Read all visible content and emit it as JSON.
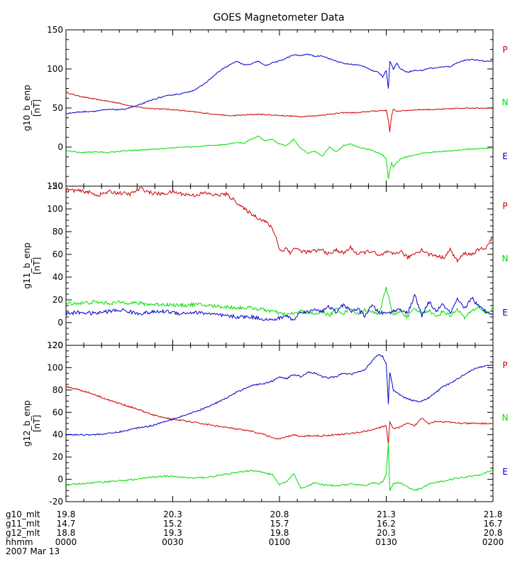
{
  "chart_data": {
    "type": "line",
    "title": "GOES Magnetometer Data",
    "date_label": "2007 Mar 13",
    "colors": {
      "P": "#cc0000",
      "N": "#00dd00",
      "E": "#0000cc",
      "axis": "#000000"
    },
    "x_axis": {
      "unit": "hhmm",
      "range_minutes": [
        0,
        120
      ],
      "tick_positions_minutes": [
        0,
        30,
        60,
        90,
        120
      ],
      "rows": [
        {
          "label": "g10_mlt",
          "values": [
            "19.8",
            "20.3",
            "20.8",
            "21.3",
            "21.8"
          ]
        },
        {
          "label": "g11_mlt",
          "values": [
            "14.7",
            "15.2",
            "15.7",
            "16.2",
            "16.7"
          ]
        },
        {
          "label": "g12_mlt",
          "values": [
            "18.8",
            "19.3",
            "19.8",
            "20.3",
            "20.8"
          ]
        },
        {
          "label": "hhmm",
          "values": [
            "0000",
            "0030",
            "0100",
            "0130",
            "0200"
          ]
        }
      ]
    },
    "panels": [
      {
        "ylabel": "g10_b_enp",
        "yunit": "[nT]",
        "ylim": [
          -50,
          150
        ],
        "yticks": [
          -50,
          0,
          50,
          100,
          150
        ],
        "series": [
          {
            "name": "P",
            "color": "#cc0000",
            "x": [
              0,
              3,
              6,
              10,
              14,
              18,
              22,
              26,
              30,
              34,
              38,
              42,
              46,
              50,
              54,
              58,
              62,
              66,
              70,
              74,
              78,
              82,
              86,
              90,
              90.6,
              91,
              91.5,
              92,
              93,
              96,
              100,
              104,
              108,
              112,
              116,
              120
            ],
            "y": [
              70,
              66,
              63,
              60,
              57,
              53,
              50,
              49,
              48,
              46,
              44,
              42,
              40,
              41,
              42,
              41,
              40,
              39,
              40,
              42,
              44,
              44,
              46,
              47,
              35,
              20,
              40,
              48,
              46,
              47,
              48,
              48,
              49,
              50,
              50,
              50
            ]
          },
          {
            "name": "N",
            "color": "#00dd00",
            "x": [
              0,
              4,
              8,
              12,
              16,
              20,
              24,
              28,
              32,
              36,
              40,
              44,
              48,
              50,
              52,
              54,
              56,
              58,
              60,
              62,
              64,
              66,
              68,
              70,
              72,
              74,
              76,
              78,
              80,
              82,
              84,
              86,
              88,
              89,
              90,
              90.6,
              91,
              91.5,
              92,
              93,
              94,
              96,
              98,
              100,
              104,
              108,
              112,
              116,
              120
            ],
            "y": [
              -5,
              -7,
              -6,
              -7,
              -5,
              -4,
              -3,
              -2,
              0,
              0,
              2,
              3,
              6,
              5,
              10,
              14,
              8,
              10,
              4,
              2,
              10,
              -2,
              -8,
              -5,
              -12,
              0,
              -6,
              2,
              4,
              0,
              -2,
              -4,
              -8,
              -10,
              -15,
              -40,
              -30,
              -20,
              -25,
              -20,
              -15,
              -12,
              -10,
              -8,
              -6,
              -5,
              -3,
              -2,
              -1
            ]
          },
          {
            "name": "E",
            "color": "#0000cc",
            "x": [
              0,
              4,
              8,
              12,
              16,
              20,
              24,
              26,
              28,
              30,
              32,
              34,
              36,
              38,
              40,
              42,
              44,
              46,
              48,
              50,
              52,
              54,
              56,
              58,
              60,
              62,
              64,
              66,
              68,
              70,
              72,
              74,
              76,
              78,
              80,
              82,
              84,
              86,
              88,
              89,
              90,
              90.6,
              91,
              92,
              93,
              94,
              96,
              98,
              100,
              102,
              104,
              106,
              108,
              110,
              112,
              114,
              116,
              118,
              120
            ],
            "y": [
              43,
              45,
              46,
              48,
              48,
              53,
              60,
              63,
              65,
              67,
              68,
              70,
              73,
              78,
              85,
              93,
              100,
              105,
              110,
              105,
              106,
              110,
              104,
              108,
              110,
              114,
              118,
              117,
              119,
              116,
              117,
              113,
              110,
              107,
              106,
              105,
              103,
              98,
              95,
              90,
              98,
              75,
              110,
              100,
              107,
              100,
              96,
              98,
              98,
              101,
              101,
              103,
              103,
              108,
              111,
              112,
              111,
              110,
              110
            ]
          }
        ],
        "legend": [
          "P",
          "N",
          "E"
        ]
      },
      {
        "ylabel": "g11_b_enp",
        "yunit": "[nT]",
        "ylim": [
          -20,
          120
        ],
        "yticks": [
          -20,
          0,
          20,
          40,
          60,
          80,
          100,
          120
        ],
        "series": [
          {
            "name": "P",
            "color": "#cc0000",
            "x": [
              0,
              3,
              6,
              9,
              12,
              15,
              18,
              21,
              24,
              27,
              30,
              33,
              36,
              39,
              42,
              45,
              48,
              50,
              52,
              54,
              56,
              57,
              58,
              59,
              60,
              61,
              62,
              63,
              64,
              66,
              68,
              70,
              72,
              74,
              76,
              78,
              80,
              82,
              84,
              86,
              88,
              90,
              92,
              94,
              96,
              98,
              100,
              102,
              104,
              106,
              108,
              110,
              112,
              114,
              116,
              118,
              120
            ],
            "y": [
              117,
              116,
              115,
              112,
              115,
              114,
              113,
              118,
              114,
              113,
              115,
              113,
              112,
              114,
              112,
              113,
              106,
              100,
              96,
              92,
              89,
              86,
              83,
              75,
              65,
              62,
              67,
              60,
              66,
              63,
              62,
              63,
              64,
              60,
              64,
              61,
              66,
              60,
              62,
              63,
              58,
              62,
              60,
              63,
              57,
              61,
              64,
              60,
              59,
              57,
              64,
              54,
              61,
              60,
              64,
              66,
              75
            ]
          },
          {
            "name": "N",
            "color": "#00dd00",
            "x": [
              0,
              4,
              8,
              12,
              16,
              20,
              24,
              28,
              32,
              36,
              40,
              44,
              48,
              52,
              56,
              58,
              60,
              62,
              64,
              66,
              68,
              70,
              72,
              74,
              76,
              78,
              80,
              82,
              84,
              86,
              88,
              90,
              92,
              94,
              96,
              98,
              100,
              102,
              104,
              106,
              108,
              110,
              112,
              114,
              116,
              118,
              120
            ],
            "y": [
              17,
              17,
              18,
              17,
              18,
              17,
              16,
              16,
              15,
              16,
              15,
              14,
              13,
              13,
              11,
              10,
              8,
              7,
              8,
              10,
              9,
              7,
              10,
              6,
              12,
              8,
              13,
              7,
              11,
              9,
              8,
              30,
              6,
              10,
              5,
              12,
              8,
              11,
              5,
              10,
              6,
              12,
              4,
              10,
              14,
              8,
              12
            ]
          },
          {
            "name": "E",
            "color": "#0000cc",
            "x": [
              0,
              4,
              8,
              12,
              16,
              20,
              24,
              28,
              32,
              36,
              40,
              44,
              48,
              52,
              56,
              58,
              60,
              62,
              64,
              66,
              68,
              70,
              72,
              74,
              76,
              78,
              80,
              82,
              84,
              86,
              88,
              90,
              92,
              94,
              96,
              98,
              100,
              102,
              104,
              106,
              108,
              110,
              112,
              114,
              116,
              118,
              120
            ],
            "y": [
              8,
              9,
              8,
              10,
              11,
              8,
              9,
              10,
              8,
              9,
              8,
              6,
              5,
              5,
              3,
              2,
              4,
              6,
              2,
              10,
              9,
              12,
              10,
              14,
              9,
              16,
              10,
              12,
              6,
              15,
              9,
              8,
              10,
              12,
              8,
              24,
              6,
              18,
              10,
              16,
              8,
              20,
              12,
              22,
              14,
              10,
              8
            ]
          }
        ],
        "legend": [
          "P",
          "N",
          "E"
        ]
      },
      {
        "ylabel": "g12_b_enp",
        "yunit": "[nT]",
        "ylim": [
          -20,
          120
        ],
        "yticks": [
          -20,
          0,
          20,
          40,
          60,
          80,
          100,
          120
        ],
        "series": [
          {
            "name": "P",
            "color": "#cc0000",
            "x": [
              0,
              4,
              8,
              12,
              16,
              20,
              24,
              28,
              32,
              36,
              40,
              44,
              48,
              52,
              56,
              58,
              60,
              62,
              64,
              66,
              68,
              72,
              76,
              80,
              84,
              88,
              89,
              90,
              90.6,
              91,
              92,
              94,
              96,
              98,
              100,
              102,
              104,
              108,
              112,
              116,
              120
            ],
            "y": [
              83,
              80,
              76,
              71,
              67,
              63,
              58,
              55,
              53,
              51,
              49,
              47,
              45,
              43,
              40,
              37,
              36,
              38,
              40,
              38,
              39,
              39,
              40,
              41,
              43,
              46,
              47,
              48,
              32,
              52,
              45,
              47,
              50,
              48,
              55,
              50,
              52,
              51,
              50,
              50,
              50
            ]
          },
          {
            "name": "N",
            "color": "#00dd00",
            "x": [
              0,
              4,
              8,
              12,
              16,
              20,
              24,
              28,
              32,
              36,
              40,
              44,
              48,
              52,
              56,
              58,
              60,
              62,
              64,
              66,
              68,
              70,
              72,
              76,
              80,
              84,
              86,
              88,
              89,
              90,
              90.6,
              91,
              92,
              94,
              96,
              98,
              100,
              102,
              104,
              108,
              112,
              116,
              120
            ],
            "y": [
              -5,
              -4,
              -3,
              -2,
              -1,
              0,
              2,
              3,
              2,
              1,
              2,
              4,
              6,
              8,
              6,
              4,
              -5,
              -2,
              5,
              -8,
              -6,
              -3,
              -5,
              -6,
              -4,
              -6,
              -3,
              -4,
              -2,
              5,
              32,
              -10,
              -4,
              -3,
              -7,
              -10,
              -8,
              -4,
              -3,
              0,
              2,
              4,
              8
            ]
          },
          {
            "name": "E",
            "color": "#0000cc",
            "x": [
              0,
              4,
              8,
              12,
              16,
              20,
              24,
              28,
              32,
              36,
              40,
              44,
              48,
              52,
              56,
              58,
              60,
              62,
              64,
              66,
              68,
              70,
              72,
              74,
              76,
              78,
              80,
              82,
              84,
              86,
              87,
              88,
              89,
              90,
              90.6,
              91,
              92,
              94,
              96,
              98,
              100,
              102,
              104,
              106,
              108,
              110,
              112,
              114,
              116,
              118,
              120
            ],
            "y": [
              40,
              40,
              40,
              41,
              43,
              46,
              48,
              52,
              56,
              60,
              65,
              71,
              78,
              84,
              86,
              88,
              92,
              90,
              94,
              92,
              96,
              95,
              92,
              91,
              92,
              95,
              94,
              96,
              98,
              106,
              110,
              112,
              110,
              104,
              68,
              96,
              80,
              75,
              72,
              70,
              70,
              73,
              78,
              83,
              86,
              90,
              94,
              98,
              100,
              102,
              102
            ]
          }
        ],
        "legend": [
          "P",
          "N",
          "E"
        ]
      }
    ]
  }
}
